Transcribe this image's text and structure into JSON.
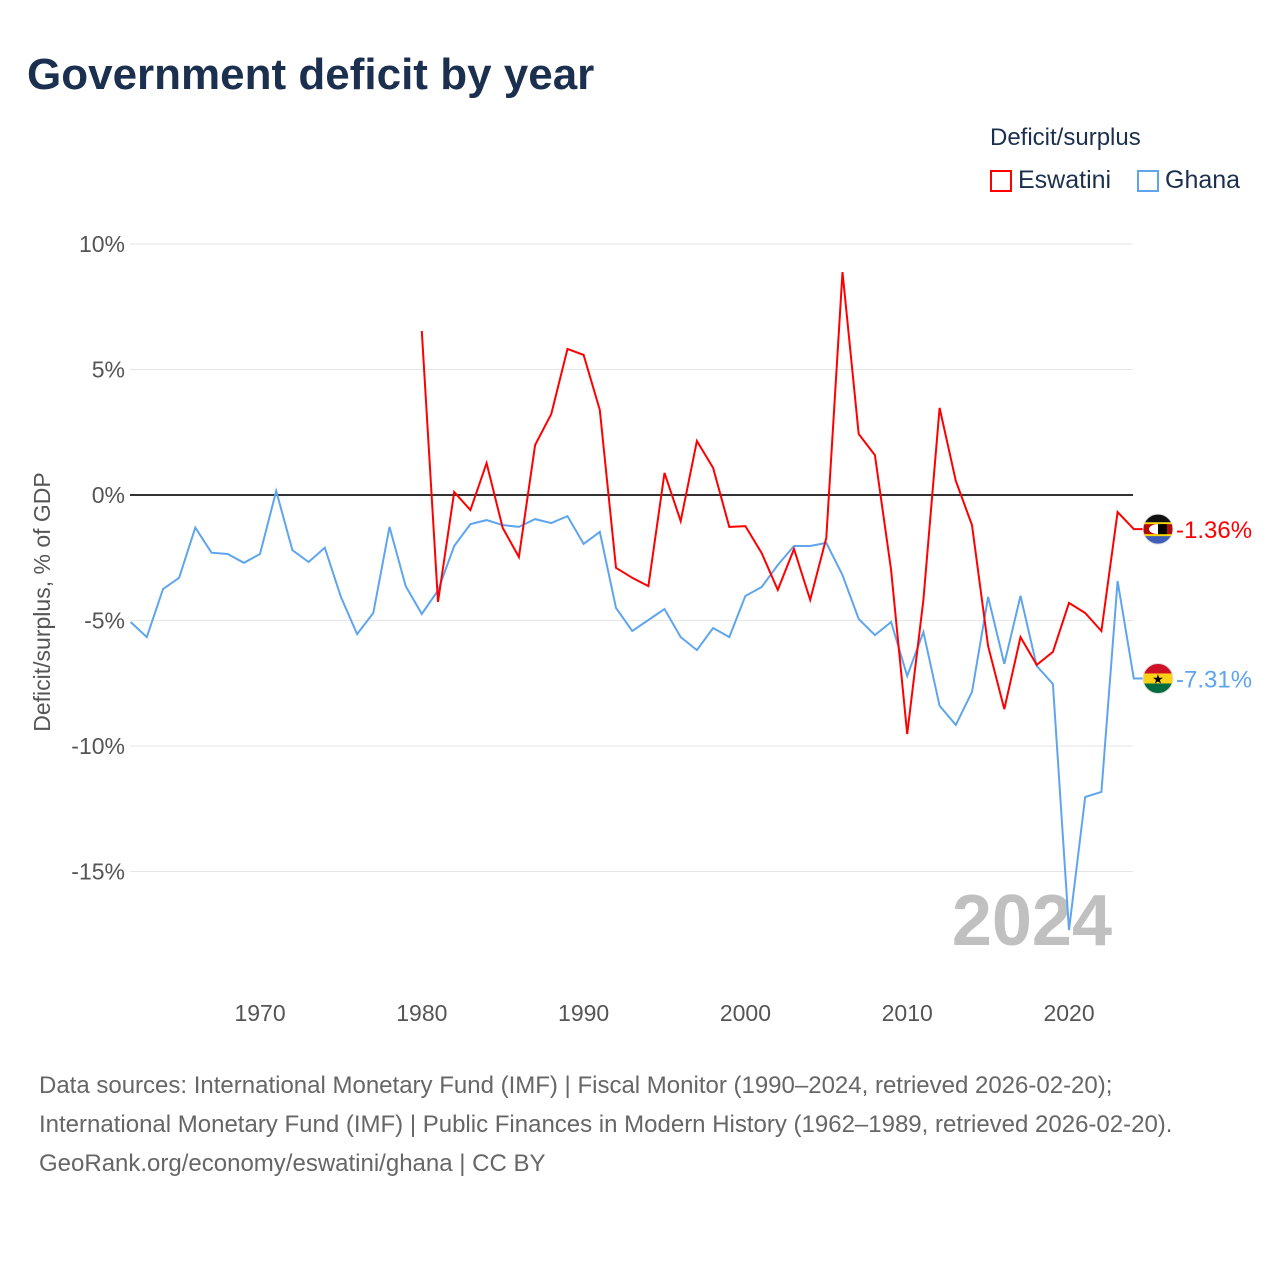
{
  "title": "Government deficit by year",
  "legend": {
    "title": "Deficit/surplus",
    "items": [
      {
        "label": "Eswatini",
        "color": "#ff0000"
      },
      {
        "label": "Ghana",
        "color": "#5ea5ee"
      }
    ]
  },
  "chart_data": {
    "type": "line",
    "title": "Government deficit by year",
    "xlabel": "",
    "ylabel": "Deficit/surplus, % of GDP",
    "xlim": [
      1962,
      2024
    ],
    "ylim": [
      -17.5,
      10
    ],
    "xticks": [
      1970,
      1980,
      1990,
      2000,
      2010,
      2020
    ],
    "yticks": [
      {
        "v": 10,
        "label": "10%"
      },
      {
        "v": 5,
        "label": "5%"
      },
      {
        "v": 0,
        "label": "0%"
      },
      {
        "v": -5,
        "label": "-5%"
      },
      {
        "v": -10,
        "label": "-10%"
      },
      {
        "v": -15,
        "label": "-15%"
      }
    ],
    "year_watermark": "2024",
    "series": [
      {
        "name": "Eswatini",
        "color": "#ff0000",
        "end_label": "-1.36%",
        "start_year": 1980,
        "values": [
          6.53,
          -4.26,
          0.12,
          -0.6,
          1.27,
          -1.31,
          -2.47,
          1.99,
          3.23,
          5.82,
          5.58,
          3.39,
          -2.9,
          -3.3,
          -3.63,
          0.88,
          -1.04,
          2.15,
          1.08,
          -1.27,
          -1.24,
          -2.31,
          -3.78,
          -2.15,
          -4.18,
          -1.71,
          8.88,
          2.43,
          1.59,
          -2.99,
          -9.52,
          -4.18,
          3.47,
          0.56,
          -1.2,
          -6.02,
          -8.53,
          -5.66,
          -6.77,
          -6.25,
          -4.3,
          -4.7,
          -5.42,
          -0.68,
          -1.36
        ]
      },
      {
        "name": "Ghana",
        "color": "#5ea5ee",
        "end_label": "-7.31%",
        "start_year": 1962,
        "values": [
          -5.06,
          -5.66,
          -3.75,
          -3.3,
          -1.3,
          -2.3,
          -2.35,
          -2.7,
          -2.35,
          0.16,
          -2.2,
          -2.67,
          -2.1,
          -4.06,
          -5.54,
          -4.7,
          -1.27,
          -3.63,
          -4.74,
          -3.8,
          -2.03,
          -1.16,
          -1.0,
          -1.2,
          -1.27,
          -0.96,
          -1.12,
          -0.84,
          -1.95,
          -1.47,
          -4.5,
          -5.42,
          -4.98,
          -4.54,
          -5.66,
          -6.18,
          -5.3,
          -5.66,
          -4.02,
          -3.67,
          -2.79,
          -2.03,
          -2.03,
          -1.91,
          -3.19,
          -4.94,
          -5.58,
          -5.06,
          -7.21,
          -5.46,
          -8.4,
          -9.16,
          -7.85,
          -4.06,
          -6.73,
          -4.02,
          -6.81,
          -7.53,
          -17.33,
          -12.03,
          -11.83,
          -3.43,
          -7.31
        ]
      }
    ]
  },
  "footer": {
    "sources": "Data sources: International Monetary Fund (IMF) | Fiscal Monitor (1990–2024, retrieved 2026-02-20); International Monetary Fund (IMF) | Public Finances in Modern History (1962–1989, retrieved 2026-02-20).",
    "credit": "GeoRank.org/economy/eswatini/ghana | CC BY"
  }
}
